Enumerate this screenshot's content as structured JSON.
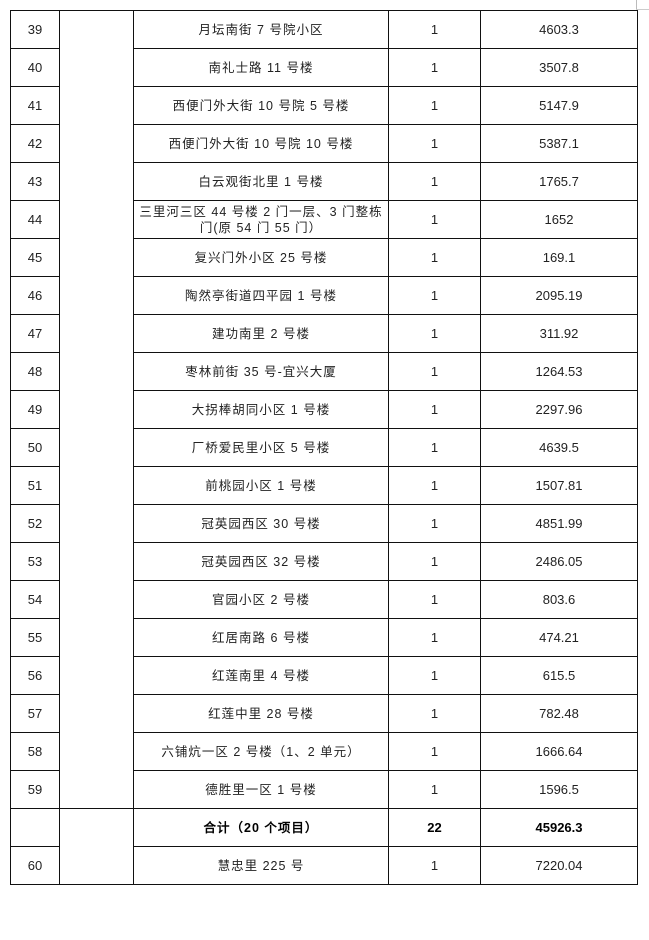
{
  "rows": [
    {
      "no": "39",
      "name": "月坛南街 7 号院小区",
      "count": "1",
      "area": "4603.3"
    },
    {
      "no": "40",
      "name": "南礼士路 11 号楼",
      "count": "1",
      "area": "3507.8"
    },
    {
      "no": "41",
      "name": "西便门外大街 10 号院 5 号楼",
      "count": "1",
      "area": "5147.9"
    },
    {
      "no": "42",
      "name": "西便门外大街 10 号院 10 号楼",
      "count": "1",
      "area": "5387.1"
    },
    {
      "no": "43",
      "name": "白云观街北里 1 号楼",
      "count": "1",
      "area": "1765.7"
    },
    {
      "no": "44",
      "name": "三里河三区 44 号楼 2 门一层、3 门整栋门(原 54 门 55 门）",
      "count": "1",
      "area": "1652"
    },
    {
      "no": "45",
      "name": "复兴门外小区 25 号楼",
      "count": "1",
      "area": "169.1"
    },
    {
      "no": "46",
      "name": "陶然亭街道四平园 1 号楼",
      "count": "1",
      "area": "2095.19"
    },
    {
      "no": "47",
      "name": "建功南里 2 号楼",
      "count": "1",
      "area": "311.92"
    },
    {
      "no": "48",
      "name": "枣林前街 35 号-宜兴大厦",
      "count": "1",
      "area": "1264.53"
    },
    {
      "no": "49",
      "name": "大拐棒胡同小区 1 号楼",
      "count": "1",
      "area": "2297.96"
    },
    {
      "no": "50",
      "name": "厂桥爱民里小区 5 号楼",
      "count": "1",
      "area": "4639.5"
    },
    {
      "no": "51",
      "name": "前桃园小区 1 号楼",
      "count": "1",
      "area": "1507.81"
    },
    {
      "no": "52",
      "name": "冠英园西区 30 号楼",
      "count": "1",
      "area": "4851.99"
    },
    {
      "no": "53",
      "name": "冠英园西区 32 号楼",
      "count": "1",
      "area": "2486.05"
    },
    {
      "no": "54",
      "name": "官园小区 2 号楼",
      "count": "1",
      "area": "803.6"
    },
    {
      "no": "55",
      "name": "红居南路 6 号楼",
      "count": "1",
      "area": "474.21"
    },
    {
      "no": "56",
      "name": "红莲南里 4 号楼",
      "count": "1",
      "area": "615.5"
    },
    {
      "no": "57",
      "name": "红莲中里 28 号楼",
      "count": "1",
      "area": "782.48"
    },
    {
      "no": "58",
      "name": "六铺炕一区 2 号楼（1、2 单元）",
      "count": "1",
      "area": "1666.64"
    },
    {
      "no": "59",
      "name": "德胜里一区 1 号楼",
      "count": "1",
      "area": "1596.5"
    }
  ],
  "total": {
    "label": "合计（20 个项目）",
    "count": "22",
    "area": "45926.3"
  },
  "last_row": {
    "no": "60",
    "name": "慧忠里 225 号",
    "count": "1",
    "area": "7220.04"
  }
}
